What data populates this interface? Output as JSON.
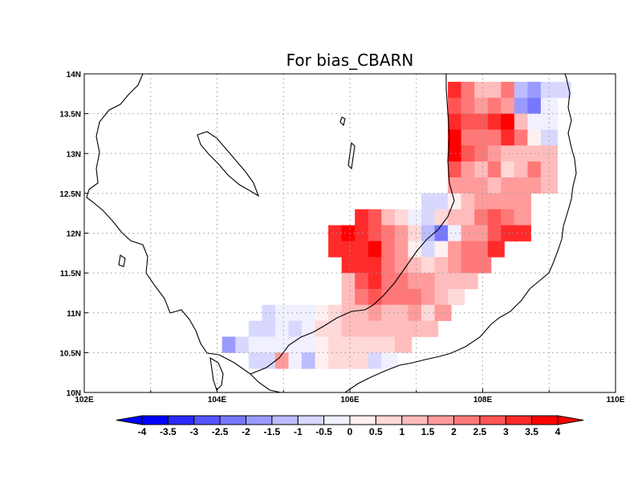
{
  "map": {
    "title": "For bias_CBARN",
    "extent": {
      "lon_min": 102,
      "lon_max": 110,
      "lat_min": 10,
      "lat_max": 14
    },
    "grid_lines": "dotted",
    "lon_ticks": [
      {
        "value": 102,
        "label": "102E"
      },
      {
        "value": 104,
        "label": "104E"
      },
      {
        "value": 106,
        "label": "106E"
      },
      {
        "value": 108,
        "label": "108E"
      },
      {
        "value": 110,
        "label": "110E"
      }
    ],
    "lat_ticks": [
      {
        "value": 10,
        "label": "10N"
      },
      {
        "value": 10.5,
        "label": "10.5N"
      },
      {
        "value": 11,
        "label": "11N"
      },
      {
        "value": 11.5,
        "label": "11.5N"
      },
      {
        "value": 12,
        "label": "12N"
      },
      {
        "value": 12.5,
        "label": "12.5N"
      },
      {
        "value": 13,
        "label": "13N"
      },
      {
        "value": 13.5,
        "label": "13.5N"
      },
      {
        "value": 14,
        "label": "14N"
      }
    ]
  },
  "colorbar": {
    "labels": [
      "-4",
      "-3.5",
      "-3",
      "-2.5",
      "-2",
      "-1.5",
      "-1",
      "-0.5",
      "0",
      "0.5",
      "1",
      "1.5",
      "2",
      "2.5",
      "3",
      "3.5",
      "4"
    ],
    "colors": [
      "#0000ff",
      "#2a2aff",
      "#5555ff",
      "#7878ff",
      "#9b9bff",
      "#bcbcff",
      "#d8d8ff",
      "#f0f0ff",
      "#fff0f0",
      "#ffd8d8",
      "#ffbcbc",
      "#ff9b9b",
      "#ff7878",
      "#ff5555",
      "#ff2a2a",
      "#ff0000"
    ],
    "extend": "both"
  },
  "colors": {
    "negative_extreme": "#0000ff",
    "positive_extreme": "#ff0000",
    "coastline": "#000000",
    "gridline": "#9a9a9a"
  },
  "chart_data": {
    "type": "heatmap",
    "title": "For bias_CBARN",
    "x_axis": "longitude",
    "y_axis": "latitude",
    "xlim": [
      102,
      110
    ],
    "ylim": [
      10,
      14
    ],
    "cell_size_deg": [
      0.25,
      0.2
    ],
    "cells": [
      [
        107.6,
        13.8,
        3.2
      ],
      [
        107.8,
        13.8,
        2.1
      ],
      [
        108.0,
        13.8,
        1.4
      ],
      [
        108.2,
        13.8,
        1.3
      ],
      [
        108.4,
        13.8,
        2.3
      ],
      [
        108.6,
        13.8,
        -1.2
      ],
      [
        108.8,
        13.8,
        -1.6
      ],
      [
        109.0,
        13.8,
        -0.8
      ],
      [
        109.2,
        13.8,
        -1.0
      ],
      [
        107.6,
        13.6,
        2.9
      ],
      [
        107.8,
        13.6,
        2.0
      ],
      [
        108.0,
        13.6,
        1.9
      ],
      [
        108.2,
        13.6,
        2.4
      ],
      [
        108.4,
        13.6,
        1.9
      ],
      [
        108.6,
        13.6,
        -2.0
      ],
      [
        108.8,
        13.6,
        -2.1
      ],
      [
        109.0,
        13.6,
        -0.4
      ],
      [
        107.6,
        13.4,
        3.3
      ],
      [
        107.8,
        13.4,
        2.6
      ],
      [
        108.0,
        13.4,
        2.5
      ],
      [
        108.2,
        13.4,
        3.0
      ],
      [
        108.4,
        13.4,
        3.9
      ],
      [
        108.6,
        13.4,
        1.4
      ],
      [
        108.8,
        13.4,
        -0.4
      ],
      [
        109.0,
        13.4,
        -0.5
      ],
      [
        107.6,
        13.2,
        3.6
      ],
      [
        107.8,
        13.2,
        2.2
      ],
      [
        108.0,
        13.2,
        2.3
      ],
      [
        108.2,
        13.2,
        2.0
      ],
      [
        108.4,
        13.2,
        3.1
      ],
      [
        108.6,
        13.2,
        2.1
      ],
      [
        108.8,
        13.2,
        0.2
      ],
      [
        109.0,
        13.2,
        -1.0
      ],
      [
        107.6,
        13.0,
        3.9
      ],
      [
        107.8,
        13.0,
        2.8
      ],
      [
        108.0,
        13.0,
        2.0
      ],
      [
        108.2,
        13.0,
        1.6
      ],
      [
        108.4,
        13.0,
        1.3
      ],
      [
        108.6,
        13.0,
        1.3
      ],
      [
        108.8,
        13.0,
        1.2
      ],
      [
        109.0,
        13.0,
        1.3
      ],
      [
        107.6,
        12.8,
        2.6
      ],
      [
        107.8,
        12.8,
        1.9
      ],
      [
        108.0,
        12.8,
        1.4
      ],
      [
        108.2,
        12.8,
        2.1
      ],
      [
        108.4,
        12.8,
        0.9
      ],
      [
        108.6,
        12.8,
        1.1
      ],
      [
        108.8,
        12.8,
        2.1
      ],
      [
        109.0,
        12.8,
        1.3
      ],
      [
        107.6,
        12.6,
        1.6
      ],
      [
        107.8,
        12.6,
        1.6
      ],
      [
        108.0,
        12.6,
        1.8
      ],
      [
        108.2,
        12.6,
        1.4
      ],
      [
        108.4,
        12.6,
        1.6
      ],
      [
        108.6,
        12.6,
        1.8
      ],
      [
        108.8,
        12.6,
        1.9
      ],
      [
        109.0,
        12.6,
        1.0
      ],
      [
        107.2,
        12.4,
        -0.8
      ],
      [
        107.4,
        12.4,
        -1.0
      ],
      [
        107.6,
        12.4,
        0.3
      ],
      [
        107.8,
        12.4,
        1.2
      ],
      [
        108.0,
        12.4,
        1.6
      ],
      [
        108.2,
        12.4,
        1.7
      ],
      [
        108.4,
        12.4,
        1.9
      ],
      [
        108.6,
        12.4,
        1.8
      ],
      [
        106.2,
        12.2,
        3.2
      ],
      [
        106.4,
        12.2,
        2.6
      ],
      [
        106.6,
        12.2,
        1.3
      ],
      [
        106.8,
        12.2,
        0.6
      ],
      [
        107.0,
        12.2,
        -0.3
      ],
      [
        107.2,
        12.2,
        -0.8
      ],
      [
        107.4,
        12.2,
        0.5
      ],
      [
        107.6,
        12.2,
        1.0
      ],
      [
        107.8,
        12.2,
        1.4
      ],
      [
        108.0,
        12.2,
        2.2
      ],
      [
        108.2,
        12.2,
        2.5
      ],
      [
        108.4,
        12.2,
        2.3
      ],
      [
        108.6,
        12.2,
        1.6
      ],
      [
        105.8,
        12.0,
        3.2
      ],
      [
        106.0,
        12.0,
        3.6
      ],
      [
        106.2,
        12.0,
        3.1
      ],
      [
        106.4,
        12.0,
        2.9
      ],
      [
        106.6,
        12.0,
        2.0
      ],
      [
        106.8,
        12.0,
        1.6
      ],
      [
        107.0,
        12.0,
        0.5
      ],
      [
        107.2,
        12.0,
        -1.1
      ],
      [
        107.4,
        12.0,
        -2.5
      ],
      [
        107.6,
        12.0,
        -0.4
      ],
      [
        107.8,
        12.0,
        1.5
      ],
      [
        108.0,
        12.0,
        1.8
      ],
      [
        108.2,
        12.0,
        2.5
      ],
      [
        108.4,
        12.0,
        3.0
      ],
      [
        108.6,
        12.0,
        3.4
      ],
      [
        105.8,
        11.8,
        3.1
      ],
      [
        106.0,
        11.8,
        3.2
      ],
      [
        106.2,
        11.8,
        3.4
      ],
      [
        106.4,
        11.8,
        3.9
      ],
      [
        106.6,
        11.8,
        2.2
      ],
      [
        106.8,
        11.8,
        1.9
      ],
      [
        107.0,
        11.8,
        0.2
      ],
      [
        107.2,
        11.8,
        -0.9
      ],
      [
        107.4,
        11.8,
        0.4
      ],
      [
        107.6,
        11.8,
        1.6
      ],
      [
        107.8,
        11.8,
        2.2
      ],
      [
        108.0,
        11.8,
        2.4
      ],
      [
        108.2,
        11.8,
        3.0
      ],
      [
        106.0,
        11.6,
        3.0
      ],
      [
        106.2,
        11.6,
        3.2
      ],
      [
        106.4,
        11.6,
        3.4
      ],
      [
        106.6,
        11.6,
        2.0
      ],
      [
        106.8,
        11.6,
        1.8
      ],
      [
        107.0,
        11.6,
        1.4
      ],
      [
        107.2,
        11.6,
        0.9
      ],
      [
        107.4,
        11.6,
        1.2
      ],
      [
        107.6,
        11.6,
        1.6
      ],
      [
        107.8,
        11.6,
        2.0
      ],
      [
        108.0,
        11.6,
        2.2
      ],
      [
        106.0,
        11.4,
        1.2
      ],
      [
        106.2,
        11.4,
        2.7
      ],
      [
        106.4,
        11.4,
        3.2
      ],
      [
        106.6,
        11.4,
        2.4
      ],
      [
        106.8,
        11.4,
        2.0
      ],
      [
        107.0,
        11.4,
        1.9
      ],
      [
        107.2,
        11.4,
        1.6
      ],
      [
        107.4,
        11.4,
        1.2
      ],
      [
        107.6,
        11.4,
        1.4
      ],
      [
        107.8,
        11.4,
        1.3
      ],
      [
        106.0,
        11.2,
        1.4
      ],
      [
        106.2,
        11.2,
        2.0
      ],
      [
        106.4,
        11.2,
        2.6
      ],
      [
        106.6,
        11.2,
        2.2
      ],
      [
        106.8,
        11.2,
        2.1
      ],
      [
        107.0,
        11.2,
        2.0
      ],
      [
        107.2,
        11.2,
        1.5
      ],
      [
        107.4,
        11.2,
        1.1
      ],
      [
        107.6,
        11.2,
        0.8
      ],
      [
        104.8,
        11.0,
        -0.8
      ],
      [
        105.0,
        11.0,
        -0.4
      ],
      [
        105.2,
        11.0,
        -0.3
      ],
      [
        105.4,
        11.0,
        -0.2
      ],
      [
        105.6,
        11.0,
        0.1
      ],
      [
        105.8,
        11.0,
        0.5
      ],
      [
        106.0,
        11.0,
        1.0
      ],
      [
        106.2,
        11.0,
        1.4
      ],
      [
        106.4,
        11.0,
        1.6
      ],
      [
        106.6,
        11.0,
        1.3
      ],
      [
        106.8,
        11.0,
        1.2
      ],
      [
        107.0,
        11.0,
        1.5
      ],
      [
        107.2,
        11.0,
        0.9
      ],
      [
        107.4,
        11.0,
        1.6
      ],
      [
        104.6,
        10.8,
        -0.7
      ],
      [
        104.8,
        10.8,
        -0.6
      ],
      [
        105.0,
        10.8,
        -0.5
      ],
      [
        105.2,
        10.8,
        -0.6
      ],
      [
        105.4,
        10.8,
        -0.3
      ],
      [
        105.6,
        10.8,
        0.6
      ],
      [
        105.8,
        10.8,
        0.9
      ],
      [
        106.0,
        10.8,
        1.1
      ],
      [
        106.2,
        10.8,
        1.3
      ],
      [
        106.4,
        10.8,
        1.2
      ],
      [
        106.6,
        10.8,
        1.0
      ],
      [
        106.8,
        10.8,
        1.3
      ],
      [
        107.0,
        10.8,
        1.2
      ],
      [
        107.2,
        10.8,
        1.4
      ],
      [
        104.2,
        10.6,
        -2.0
      ],
      [
        104.4,
        10.6,
        -0.9
      ],
      [
        104.6,
        10.6,
        -0.4
      ],
      [
        104.8,
        10.6,
        -0.5
      ],
      [
        105.0,
        10.6,
        -0.4
      ],
      [
        105.2,
        10.6,
        -0.2
      ],
      [
        105.4,
        10.6,
        -0.3
      ],
      [
        105.6,
        10.6,
        0.3
      ],
      [
        105.8,
        10.6,
        0.7
      ],
      [
        106.0,
        10.6,
        0.8
      ],
      [
        106.2,
        10.6,
        0.9
      ],
      [
        106.4,
        10.6,
        0.8
      ],
      [
        106.6,
        10.6,
        0.7
      ],
      [
        106.8,
        10.6,
        1.0
      ],
      [
        104.6,
        10.4,
        -0.8
      ],
      [
        104.8,
        10.4,
        -1.0
      ],
      [
        105.0,
        10.4,
        1.6
      ],
      [
        105.2,
        10.4,
        -0.3
      ],
      [
        105.4,
        10.4,
        -1.3
      ],
      [
        105.6,
        10.4,
        0.2
      ],
      [
        105.8,
        10.4,
        0.6
      ],
      [
        106.0,
        10.4,
        0.6
      ],
      [
        106.2,
        10.4,
        0.7
      ],
      [
        106.4,
        10.4,
        -0.7
      ],
      [
        106.6,
        10.4,
        -0.5
      ]
    ]
  }
}
